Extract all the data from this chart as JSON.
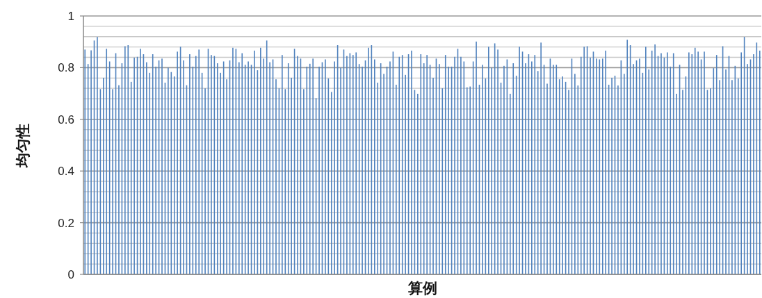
{
  "chart_data": {
    "type": "bar",
    "xlabel": "算例",
    "ylabel": "均匀性",
    "color": "#4f81bd",
    "grid": "y",
    "ylim": [
      0,
      1
    ],
    "yticks": [
      0,
      {
        "value": 0.04,
        "label": null
      },
      {
        "value": 0.08,
        "label": null
      },
      {
        "value": 0.12,
        "label": null
      },
      {
        "value": 0.16,
        "label": null
      },
      0.2,
      {
        "value": 0.24,
        "label": null
      },
      {
        "value": 0.28,
        "label": null
      },
      {
        "value": 0.32,
        "label": null
      },
      {
        "value": 0.36,
        "label": null
      },
      0.4,
      {
        "value": 0.44,
        "label": null
      },
      {
        "value": 0.48,
        "label": null
      },
      {
        "value": 0.52,
        "label": null
      },
      {
        "value": 0.56,
        "label": null
      },
      0.6,
      {
        "value": 0.64,
        "label": null
      },
      {
        "value": 0.68,
        "label": null
      },
      {
        "value": 0.72,
        "label": null
      },
      {
        "value": 0.76,
        "label": null
      },
      0.8,
      {
        "value": 0.84,
        "label": null
      },
      {
        "value": 0.88,
        "label": null
      },
      {
        "value": 0.92,
        "label": null
      },
      {
        "value": 0.96,
        "label": null
      },
      1
    ],
    "categories": [
      null,
      null,
      null,
      null,
      null,
      null,
      null,
      null,
      null,
      null,
      null,
      null,
      null,
      null,
      null,
      null,
      null,
      null,
      null,
      null,
      null,
      null,
      null,
      null,
      null,
      null,
      null,
      null,
      null,
      null,
      null,
      null,
      null,
      null,
      null,
      null,
      null,
      null,
      null,
      null,
      null,
      null,
      null,
      null,
      null,
      null,
      null,
      null,
      null,
      null,
      null,
      null,
      null,
      null,
      null,
      null,
      null,
      null,
      null,
      null,
      null,
      null,
      null,
      null,
      null,
      null,
      null,
      null,
      null,
      null,
      null,
      null,
      null,
      null,
      null,
      null,
      null,
      null,
      null,
      null,
      null,
      null,
      null,
      null,
      null,
      null,
      null,
      null,
      null,
      null,
      null,
      null,
      null,
      null,
      null,
      null,
      null,
      null,
      null,
      null,
      null,
      null,
      null,
      null,
      null,
      null,
      null,
      null,
      null,
      null,
      null,
      null,
      null,
      null,
      null,
      null,
      null,
      null,
      null,
      null,
      null,
      null,
      null,
      null,
      null,
      null,
      null,
      null,
      null,
      null,
      null,
      null,
      null,
      null,
      null,
      null,
      null,
      null,
      null,
      null,
      null,
      null,
      null,
      null,
      null,
      null,
      null,
      null,
      null,
      null,
      null,
      null,
      null,
      null,
      null,
      null,
      null,
      null,
      null,
      null,
      null,
      null,
      null,
      null,
      null,
      null,
      null,
      null,
      null,
      null,
      null,
      null,
      null,
      null,
      null,
      null,
      null,
      null,
      null,
      null,
      null,
      null,
      null,
      null,
      null,
      null,
      null,
      null,
      null,
      null,
      null,
      null,
      null,
      null,
      null,
      null,
      null,
      null,
      null,
      null,
      null,
      null,
      null,
      null,
      null,
      null,
      null,
      null,
      null,
      null,
      null,
      null,
      null,
      null,
      null,
      null,
      null,
      null,
      null,
      null
    ],
    "values": [
      0.87,
      0.814,
      0.867,
      0.905,
      0.919,
      0.717,
      0.761,
      0.873,
      0.824,
      0.717,
      0.856,
      0.732,
      0.817,
      0.883,
      0.887,
      0.745,
      0.839,
      0.842,
      0.873,
      0.852,
      0.821,
      0.78,
      0.852,
      0.804,
      0.828,
      0.835,
      0.742,
      0.8,
      0.783,
      0.766,
      0.862,
      0.881,
      0.828,
      0.732,
      0.852,
      0.804,
      0.845,
      0.87,
      0.78,
      0.72,
      0.873,
      0.849,
      0.845,
      0.817,
      0.78,
      0.824,
      0.755,
      0.828,
      0.877,
      0.873,
      0.821,
      0.856,
      0.811,
      0.824,
      0.811,
      0.866,
      0.79,
      0.877,
      0.835,
      0.905,
      0.821,
      0.832,
      0.755,
      0.72,
      0.849,
      0.717,
      0.817,
      0.761,
      0.873,
      0.845,
      0.835,
      0.717,
      0.804,
      0.815,
      0.835,
      0.682,
      0.804,
      0.821,
      0.832,
      0.758,
      0.706,
      0.824,
      0.887,
      0.8,
      0.87,
      0.845,
      0.856,
      0.849,
      0.859,
      0.814,
      0.804,
      0.828,
      0.877,
      0.887,
      0.832,
      0.742,
      0.817,
      0.776,
      0.804,
      0.824,
      0.862,
      0.734,
      0.842,
      0.849,
      0.772,
      0.852,
      0.866,
      0.714,
      0.699,
      0.852,
      0.817,
      0.849,
      0.811,
      0.761,
      0.835,
      0.814,
      0.72,
      0.849,
      0.804,
      0.804,
      0.842,
      0.873,
      0.842,
      0.824,
      0.724,
      0.727,
      0.824,
      0.901,
      0.734,
      0.811,
      0.758,
      0.881,
      0.8,
      0.894,
      0.87,
      0.742,
      0.807,
      0.832,
      0.699,
      0.817,
      0.769,
      0.881,
      0.862,
      0.817,
      0.852,
      0.824,
      0.849,
      0.787,
      0.897,
      0.811,
      0.738,
      0.835,
      0.811,
      0.811,
      0.755,
      0.766,
      0.745,
      0.714,
      0.835,
      0.776,
      0.731,
      0.842,
      0.881,
      0.883,
      0.839,
      0.862,
      0.835,
      0.832,
      0.835,
      0.866,
      0.734,
      0.761,
      0.769,
      0.731,
      0.828,
      0.776,
      0.908,
      0.887,
      0.814,
      0.828,
      0.835,
      0.78,
      0.881,
      0.793,
      0.866,
      0.89,
      0.845,
      0.856,
      0.839,
      0.859,
      0.804,
      0.856,
      0.699,
      0.811,
      0.714,
      0.766,
      0.859,
      0.852,
      0.877,
      0.862,
      0.832,
      0.862,
      0.714,
      0.72,
      0.798,
      0.849,
      0.752,
      0.883,
      0.793,
      0.845,
      0.752,
      0.807,
      0.758,
      0.859,
      0.919,
      0.814,
      0.832,
      0.852,
      0.897,
      0.866
    ]
  }
}
